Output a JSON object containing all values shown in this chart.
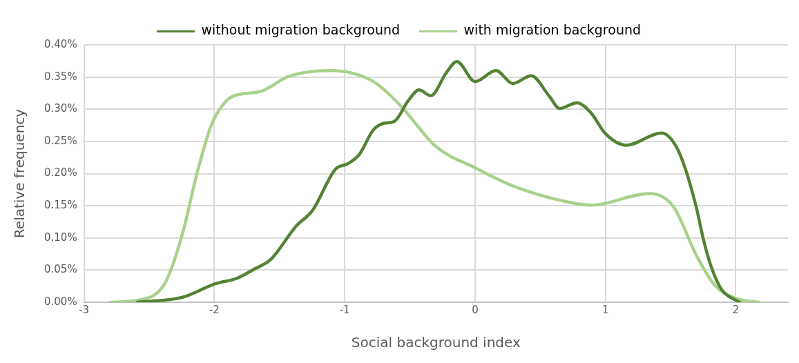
{
  "chart_data": {
    "type": "line",
    "xlabel": "Social background index",
    "ylabel": "Relative frequency",
    "xlim": [
      -3,
      2.4
    ],
    "xticks": [
      -3,
      -2,
      -1,
      0,
      1,
      2
    ],
    "ylim": [
      0,
      0.4
    ],
    "yticks": [
      {
        "value": 0,
        "label": "0.00%"
      },
      {
        "value": 0.05,
        "label": "0.05%"
      },
      {
        "value": 0.1,
        "label": "0.10%"
      },
      {
        "value": 0.15,
        "label": "0.15%"
      },
      {
        "value": 0.2,
        "label": "0.20%"
      },
      {
        "value": 0.25,
        "label": "0.25%"
      },
      {
        "value": 0.3,
        "label": "0.30%"
      },
      {
        "value": 0.35,
        "label": "0.35%"
      },
      {
        "value": 0.4,
        "label": "0.40%"
      }
    ],
    "grid": true,
    "legend": "top",
    "marker": "none",
    "line_style": "solid",
    "series": [
      {
        "name": "without migration background",
        "color": "#548235",
        "x": [
          -2.59,
          -2.24,
          -1.99,
          -1.83,
          -1.69,
          -1.57,
          -1.37,
          -1.25,
          -1.07,
          -0.98,
          -0.89,
          -0.78,
          -0.7,
          -0.62,
          -0.51,
          -0.43,
          -0.34,
          -0.22,
          -0.14,
          0,
          0.16,
          0.29,
          0.43,
          0.57,
          0.65,
          0.78,
          0.89,
          1.0,
          1.16,
          1.43,
          1.54,
          1.62,
          1.7,
          1.75,
          1.81,
          1.89,
          2.0,
          2.03
        ],
        "values": [
          0,
          0.008,
          0.029,
          0.037,
          0.052,
          0.066,
          0.119,
          0.142,
          0.207,
          0.215,
          0.229,
          0.268,
          0.278,
          0.281,
          0.314,
          0.33,
          0.321,
          0.357,
          0.374,
          0.343,
          0.36,
          0.34,
          0.352,
          0.32,
          0.301,
          0.31,
          0.294,
          0.262,
          0.244,
          0.263,
          0.243,
          0.203,
          0.145,
          0.099,
          0.056,
          0.02,
          0.003,
          0
        ]
      },
      {
        "name": "with migration background",
        "color": "#a9d18e",
        "x": [
          -2.8,
          -2.52,
          -2.37,
          -2.24,
          -2.13,
          -2.02,
          -1.93,
          -1.86,
          -1.64,
          -1.43,
          -1.11,
          -0.78,
          -0.57,
          -0.3,
          0,
          0.3,
          0.78,
          0.89,
          1.34,
          1.52,
          1.7,
          1.84,
          2.0,
          2.18
        ],
        "values": [
          0,
          0.006,
          0.033,
          0.11,
          0.203,
          0.277,
          0.308,
          0.32,
          0.328,
          0.351,
          0.36,
          0.343,
          0.305,
          0.242,
          0.209,
          0.18,
          0.153,
          0.151,
          0.169,
          0.149,
          0.072,
          0.026,
          0.006,
          0
        ]
      }
    ]
  }
}
